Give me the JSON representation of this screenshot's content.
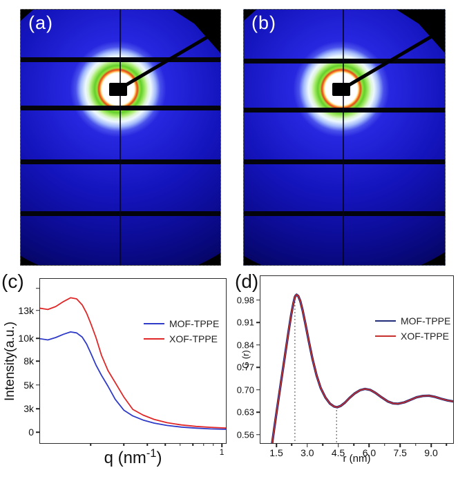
{
  "figure": {
    "panels": [
      {
        "id": "a",
        "label": "(a)"
      },
      {
        "id": "b",
        "label": "(b)"
      }
    ]
  },
  "detector_colors": {
    "background_blue": "#1a1ad0",
    "edge_blue": "#08087b",
    "halo_center": "#ffffff",
    "halo_ring_red": "#e0481f",
    "halo_ring_green": "#63d02a",
    "mask_black": "#000000"
  },
  "chart_data": [
    {
      "id": "c",
      "type": "line",
      "panel_label": "(c)",
      "ylabel": "Intensity(a.u.)",
      "xlabel_prefix": "q (nm",
      "xlabel_sup": "-1",
      "xlabel_suffix": ")",
      "x_axis": "log",
      "xlim": [
        0.107,
        1.05
      ],
      "ylim": [
        0,
        15500
      ],
      "legend_position": "upper right",
      "x_scale": {
        "type": "anchors",
        "log": true,
        "anchors": [
          {
            "v": 0.2,
            "f": 0.273
          },
          {
            "v": 1.0,
            "f": 0.978
          }
        ]
      },
      "y_scale": {
        "type": "anchors",
        "anchors": [
          {
            "v": 0,
            "f": 0.933
          },
          {
            "v": 3000,
            "f": 0.792
          },
          {
            "v": 5000,
            "f": 0.646
          },
          {
            "v": 8000,
            "f": 0.5
          },
          {
            "v": 10000,
            "f": 0.363
          },
          {
            "v": 13000,
            "f": 0.192
          },
          {
            "v": 15000,
            "f": 0.058
          }
        ]
      },
      "x_ticks": [
        {
          "v": 0.2
        },
        {
          "v": 0.3
        },
        {
          "v": 0.4
        },
        {
          "v": 0.5
        },
        {
          "v": 0.6
        },
        {
          "v": 0.7
        },
        {
          "v": 0.8
        },
        {
          "v": 0.9
        },
        {
          "v": 1.0,
          "label": "1"
        }
      ],
      "y_ticks": [
        {
          "v": 15000,
          "label": ""
        },
        {
          "v": 13000,
          "label": "13k"
        },
        {
          "v": 10000,
          "label": "10k"
        },
        {
          "v": 8000,
          "label": "8k"
        },
        {
          "v": 5000,
          "label": "5k"
        },
        {
          "v": 3000,
          "label": "3k"
        },
        {
          "v": 0,
          "label": "0"
        }
      ],
      "series": [
        {
          "name": "MOF-TPPE",
          "color": "#2e3ac8",
          "width": 1.8,
          "points": [
            [
              0.107,
              9980
            ],
            [
              0.118,
              9870
            ],
            [
              0.13,
              10100
            ],
            [
              0.143,
              10450
            ],
            [
              0.156,
              10700
            ],
            [
              0.168,
              10600
            ],
            [
              0.18,
              10150
            ],
            [
              0.19,
              9500
            ],
            [
              0.2,
              8700
            ],
            [
              0.213,
              7500
            ],
            [
              0.228,
              6200
            ],
            [
              0.247,
              4900
            ],
            [
              0.27,
              3800
            ],
            [
              0.3,
              2850
            ],
            [
              0.335,
              2100
            ],
            [
              0.38,
              1560
            ],
            [
              0.435,
              1170
            ],
            [
              0.51,
              860
            ],
            [
              0.61,
              650
            ],
            [
              0.73,
              510
            ],
            [
              0.87,
              420
            ],
            [
              1.05,
              360
            ]
          ]
        },
        {
          "name": "XOF-TPPE",
          "color": "#e02626",
          "width": 1.8,
          "points": [
            [
              0.107,
              13200
            ],
            [
              0.118,
              13080
            ],
            [
              0.13,
              13350
            ],
            [
              0.143,
              13800
            ],
            [
              0.156,
              14150
            ],
            [
              0.168,
              14050
            ],
            [
              0.18,
              13500
            ],
            [
              0.19,
              12700
            ],
            [
              0.2,
              11600
            ],
            [
              0.213,
              10100
            ],
            [
              0.228,
              8500
            ],
            [
              0.247,
              6800
            ],
            [
              0.27,
              5300
            ],
            [
              0.3,
              4000
            ],
            [
              0.335,
              2950
            ],
            [
              0.38,
              2200
            ],
            [
              0.435,
              1650
            ],
            [
              0.51,
              1220
            ],
            [
              0.61,
              930
            ],
            [
              0.73,
              740
            ],
            [
              0.87,
              620
            ],
            [
              1.05,
              530
            ]
          ]
        }
      ]
    },
    {
      "id": "d",
      "type": "line",
      "panel_label": "(d)",
      "ylabel": "G (r)",
      "xlabel_prefix": "r (nm)",
      "xlabel_sup": "",
      "xlabel_suffix": "",
      "x_axis": "linear",
      "xlim": [
        0.73,
        10.07
      ],
      "ylim": [
        0.534,
        1.055
      ],
      "legend_position": "upper right",
      "x_scale": {
        "type": "linear-x",
        "min": 0.73,
        "max": 10.07
      },
      "y_scale": {
        "type": "linear-y",
        "min": 0.534,
        "max": 1.055
      },
      "x_ticks": [
        {
          "v": 1.5,
          "label": "1.5"
        },
        {
          "v": 2.25
        },
        {
          "v": 3.0,
          "label": "3.0"
        },
        {
          "v": 3.75
        },
        {
          "v": 4.5,
          "label": "4.5"
        },
        {
          "v": 5.25
        },
        {
          "v": 6.0,
          "label": "6.0"
        },
        {
          "v": 6.75
        },
        {
          "v": 7.5,
          "label": "7.5"
        },
        {
          "v": 8.25
        },
        {
          "v": 9.0,
          "label": "9.0"
        },
        {
          "v": 9.75
        }
      ],
      "y_ticks": [
        {
          "v": 0.98,
          "label": "0.98"
        },
        {
          "v": 0.91,
          "label": "0.91"
        },
        {
          "v": 0.84,
          "label": "0.84"
        },
        {
          "v": 0.77,
          "label": "0.77"
        },
        {
          "v": 0.7,
          "label": "0.70"
        },
        {
          "v": 0.63,
          "label": "0.63"
        },
        {
          "v": 0.56,
          "label": "0.56"
        }
      ],
      "markers": [
        {
          "x": 2.4,
          "y_top": 0.997
        },
        {
          "x": 4.42,
          "y_top": 0.648
        }
      ],
      "series": [
        {
          "name": "MOF-TPPE",
          "color": "#1f2a78",
          "width": 3.4,
          "points": [
            [
              1.3,
              0.534
            ],
            [
              1.38,
              0.571
            ],
            [
              1.48,
              0.616
            ],
            [
              1.6,
              0.669
            ],
            [
              1.72,
              0.722
            ],
            [
              1.85,
              0.778
            ],
            [
              1.98,
              0.833
            ],
            [
              2.1,
              0.885
            ],
            [
              2.22,
              0.934
            ],
            [
              2.32,
              0.968
            ],
            [
              2.4,
              0.99
            ],
            [
              2.48,
              0.997
            ],
            [
              2.56,
              0.993
            ],
            [
              2.66,
              0.977
            ],
            [
              2.78,
              0.947
            ],
            [
              2.92,
              0.903
            ],
            [
              3.08,
              0.85
            ],
            [
              3.25,
              0.797
            ],
            [
              3.45,
              0.745
            ],
            [
              3.65,
              0.706
            ],
            [
              3.88,
              0.676
            ],
            [
              4.1,
              0.657
            ],
            [
              4.3,
              0.648
            ],
            [
              4.45,
              0.646
            ],
            [
              4.62,
              0.65
            ],
            [
              4.82,
              0.66
            ],
            [
              5.05,
              0.675
            ],
            [
              5.3,
              0.689
            ],
            [
              5.55,
              0.699
            ],
            [
              5.8,
              0.703
            ],
            [
              6.05,
              0.7
            ],
            [
              6.3,
              0.691
            ],
            [
              6.6,
              0.677
            ],
            [
              6.9,
              0.664
            ],
            [
              7.15,
              0.658
            ],
            [
              7.4,
              0.657
            ],
            [
              7.7,
              0.661
            ],
            [
              8.0,
              0.669
            ],
            [
              8.3,
              0.677
            ],
            [
              8.6,
              0.681
            ],
            [
              8.9,
              0.682
            ],
            [
              9.2,
              0.678
            ],
            [
              9.5,
              0.672
            ],
            [
              9.8,
              0.667
            ],
            [
              10.07,
              0.664
            ]
          ]
        },
        {
          "name": "XOF-TPPE",
          "color": "#c62f2c",
          "width": 1.7,
          "points": [
            [
              1.3,
              0.534
            ],
            [
              1.38,
              0.571
            ],
            [
              1.48,
              0.616
            ],
            [
              1.6,
              0.669
            ],
            [
              1.72,
              0.722
            ],
            [
              1.85,
              0.778
            ],
            [
              1.98,
              0.833
            ],
            [
              2.1,
              0.885
            ],
            [
              2.22,
              0.934
            ],
            [
              2.32,
              0.968
            ],
            [
              2.4,
              0.99
            ],
            [
              2.48,
              0.997
            ],
            [
              2.56,
              0.993
            ],
            [
              2.66,
              0.977
            ],
            [
              2.78,
              0.947
            ],
            [
              2.92,
              0.903
            ],
            [
              3.08,
              0.85
            ],
            [
              3.25,
              0.797
            ],
            [
              3.45,
              0.745
            ],
            [
              3.65,
              0.706
            ],
            [
              3.88,
              0.676
            ],
            [
              4.1,
              0.657
            ],
            [
              4.3,
              0.648
            ],
            [
              4.45,
              0.646
            ],
            [
              4.62,
              0.65
            ],
            [
              4.82,
              0.66
            ],
            [
              5.05,
              0.675
            ],
            [
              5.3,
              0.689
            ],
            [
              5.55,
              0.699
            ],
            [
              5.8,
              0.703
            ],
            [
              6.05,
              0.7
            ],
            [
              6.3,
              0.691
            ],
            [
              6.6,
              0.677
            ],
            [
              6.9,
              0.664
            ],
            [
              7.15,
              0.658
            ],
            [
              7.4,
              0.657
            ],
            [
              7.7,
              0.661
            ],
            [
              8.0,
              0.669
            ],
            [
              8.3,
              0.677
            ],
            [
              8.6,
              0.681
            ],
            [
              8.9,
              0.682
            ],
            [
              9.2,
              0.678
            ],
            [
              9.5,
              0.672
            ],
            [
              9.8,
              0.667
            ],
            [
              10.07,
              0.664
            ]
          ]
        }
      ]
    }
  ]
}
